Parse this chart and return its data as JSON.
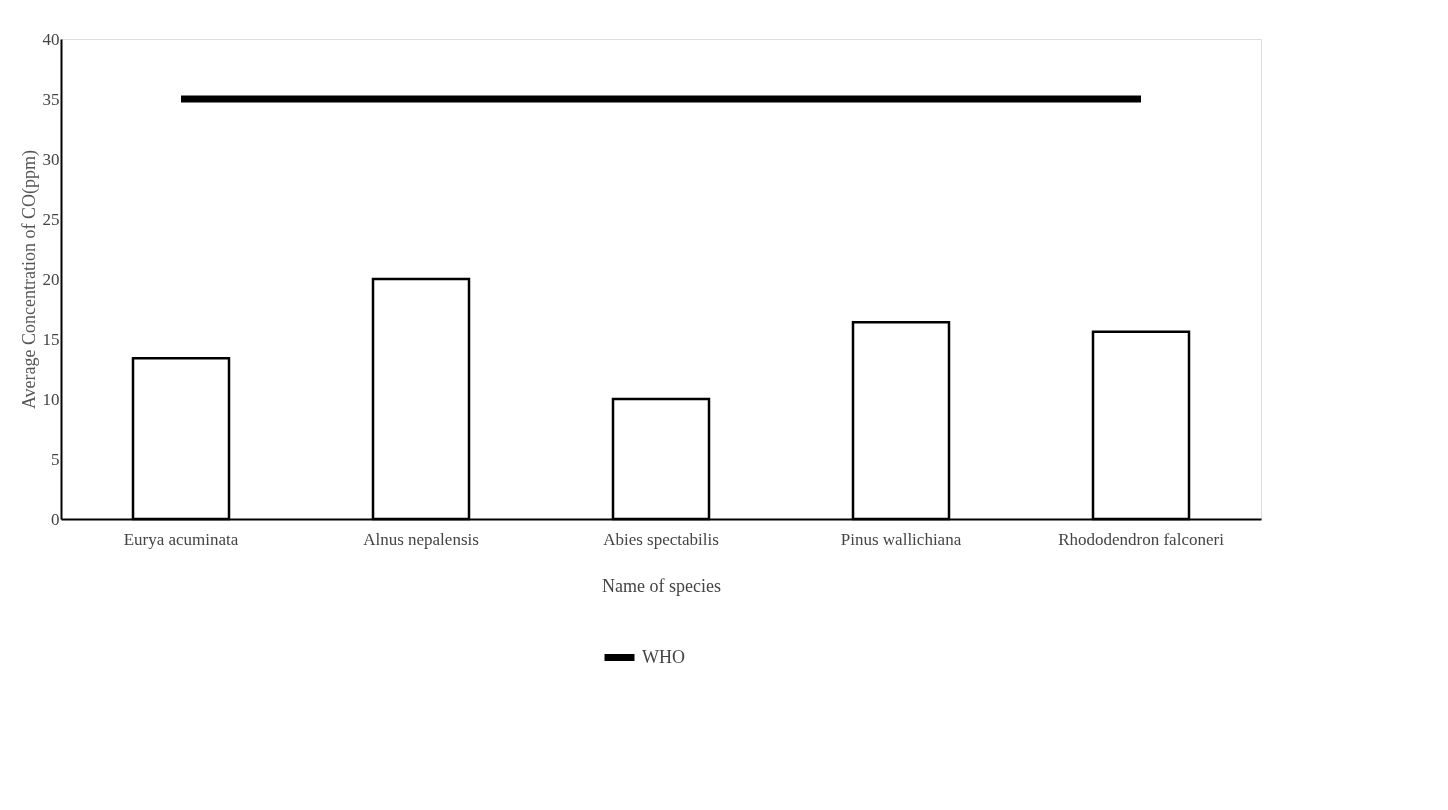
{
  "chart_data": {
    "type": "bar",
    "xlabel": "Name of species",
    "ylabel": "Average  Concentration of CO(ppm)",
    "categories": [
      "Eurya acuminata",
      "Alnus nepalensis",
      "Abies spectabilis",
      "Pinus wallichiana",
      "Rhododendron falconeri"
    ],
    "series": [
      {
        "color": "#ffffff",
        "values": [
          13.4,
          20,
          10,
          16.4,
          15.6
        ]
      },
      {
        "type": "line",
        "name": "WHO",
        "color": "#000000",
        "values": [
          35,
          35,
          35,
          35,
          35
        ]
      }
    ],
    "ylim": [
      0,
      40
    ],
    "yticks": [
      0,
      5,
      10,
      15,
      20,
      25,
      30,
      35,
      40
    ],
    "grid": false,
    "legend": "bottom",
    "marker": "none",
    "line_style": "solid"
  }
}
